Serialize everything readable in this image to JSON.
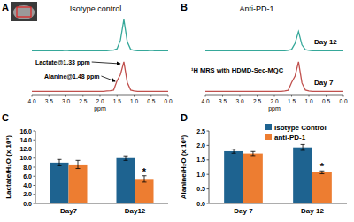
{
  "chart_data": [
    {
      "type": "line",
      "panel_label": "A",
      "title": "Isotype control",
      "x_label": "ppm",
      "x": [
        4.0,
        3.9,
        3.8,
        3.7,
        3.6,
        3.5,
        3.4,
        3.3,
        3.2,
        3.1,
        3.0,
        2.9,
        2.8,
        2.7,
        2.6,
        2.5,
        2.4,
        2.3,
        2.2,
        2.1,
        2.0,
        1.9,
        1.8,
        1.7,
        1.6,
        1.5,
        1.4,
        1.3,
        1.2,
        1.1,
        1.0,
        0.9,
        0.8,
        0.7,
        0.6,
        0.5,
        0.4,
        0.3,
        0.2,
        0.1,
        0.0
      ],
      "xlim": [
        4.0,
        0.0
      ],
      "xticks": [
        {
          "value": 4,
          "label": "4.0"
        },
        3.5,
        {
          "value": 3,
          "label": "3.0"
        },
        2.5,
        {
          "value": 2,
          "label": "2.0"
        },
        1.5,
        {
          "value": 1,
          "label": "1.0"
        },
        0.5,
        {
          "value": 0,
          "label": "0.0"
        }
      ],
      "ylim": [
        0,
        1
      ],
      "tick_labels": "x",
      "series": [
        {
          "color": "#36a89a",
          "values": [
            0.02,
            0.02,
            0.02,
            0.02,
            0.02,
            0.02,
            0.02,
            0.02,
            0.02,
            0.02,
            0.03,
            0.02,
            0.02,
            0.02,
            0.02,
            0.02,
            0.02,
            0.02,
            0.02,
            0.02,
            0.02,
            0.02,
            0.02,
            0.03,
            0.04,
            0.08,
            0.35,
            1.0,
            0.3,
            0.06,
            0.03,
            0.02,
            0.02,
            0.02,
            0.02,
            0.03,
            0.02,
            0.02,
            0.02,
            0.02,
            0.02
          ]
        },
        {
          "color": "#c0504d",
          "values": [
            0.02,
            0.02,
            0.02,
            0.02,
            0.02,
            0.02,
            0.02,
            0.02,
            0.02,
            0.02,
            0.02,
            0.02,
            0.02,
            0.02,
            0.02,
            0.02,
            0.02,
            0.02,
            0.02,
            0.02,
            0.02,
            0.02,
            0.03,
            0.04,
            0.06,
            0.35,
            0.55,
            0.95,
            0.3,
            0.06,
            0.03,
            0.02,
            0.02,
            0.02,
            0.02,
            0.02,
            0.02,
            0.02,
            0.02,
            0.02,
            0.02
          ]
        }
      ],
      "annotations": [
        {
          "text": "Lactate@1.33 ppm",
          "x": 1.33
        },
        {
          "text": "Alanine@1.48 ppm",
          "x": 1.48
        }
      ]
    },
    {
      "type": "line",
      "panel_label": "B",
      "title": "Anti-PD-1",
      "x_label": "ppm",
      "x": [
        4.0,
        3.9,
        3.8,
        3.7,
        3.6,
        3.5,
        3.4,
        3.3,
        3.2,
        3.1,
        3.0,
        2.9,
        2.8,
        2.7,
        2.6,
        2.5,
        2.4,
        2.3,
        2.2,
        2.1,
        2.0,
        1.9,
        1.8,
        1.7,
        1.6,
        1.5,
        1.4,
        1.3,
        1.2,
        1.1,
        1.0,
        0.9,
        0.8,
        0.7,
        0.6,
        0.5,
        0.4,
        0.3,
        0.2,
        0.1,
        0.0
      ],
      "xlim": [
        4.0,
        0.0
      ],
      "xticks": [
        {
          "value": 4,
          "label": "4.0"
        },
        3.5,
        {
          "value": 3,
          "label": "3.0"
        },
        2.5,
        {
          "value": 2,
          "label": "2.0"
        },
        1.5,
        {
          "value": 1,
          "label": "1.0"
        },
        0.5,
        {
          "value": 0,
          "label": "0.0"
        }
      ],
      "ylim": [
        0,
        1
      ],
      "tick_labels": "x",
      "series": [
        {
          "name": "Day 12",
          "color": "#36a89a",
          "values": [
            0.02,
            0.02,
            0.02,
            0.02,
            0.02,
            0.02,
            0.02,
            0.02,
            0.02,
            0.02,
            0.02,
            0.02,
            0.02,
            0.02,
            0.02,
            0.02,
            0.02,
            0.02,
            0.02,
            0.02,
            0.02,
            0.02,
            0.02,
            0.02,
            0.03,
            0.06,
            0.25,
            0.62,
            0.2,
            0.05,
            0.03,
            0.02,
            0.02,
            0.02,
            0.02,
            0.02,
            0.02,
            0.02,
            0.02,
            0.02,
            0.02
          ]
        },
        {
          "name": "Day 7",
          "color": "#c0504d",
          "values": [
            0.02,
            0.02,
            0.02,
            0.02,
            0.02,
            0.02,
            0.02,
            0.02,
            0.02,
            0.02,
            0.02,
            0.02,
            0.02,
            0.02,
            0.02,
            0.02,
            0.02,
            0.02,
            0.02,
            0.02,
            0.02,
            0.02,
            0.02,
            0.03,
            0.05,
            0.3,
            0.5,
            0.95,
            0.28,
            0.06,
            0.03,
            0.02,
            0.02,
            0.02,
            0.02,
            0.02,
            0.02,
            0.02,
            0.02,
            0.02,
            0.02
          ]
        }
      ],
      "annotations": [
        {
          "text": "¹H MRS with HDMD-Sec-MQC"
        }
      ]
    },
    {
      "type": "bar",
      "panel_label": "C",
      "y_label": "Lactate/H₂O (x 10³)",
      "categories": [
        "Day7",
        "Day12"
      ],
      "ylim": [
        0,
        16
      ],
      "yticks": [
        {
          "value": 0,
          "label": "0.0"
        },
        {
          "value": 2,
          "label": "2.0"
        },
        {
          "value": 4,
          "label": "4.0"
        },
        {
          "value": 6,
          "label": "6.0"
        },
        {
          "value": 8,
          "label": "8.0"
        },
        {
          "value": 10,
          "label": "10.0"
        },
        {
          "value": 12,
          "label": "12.0"
        },
        {
          "value": 14,
          "label": "14.0"
        },
        {
          "value": 16,
          "label": "16.0"
        }
      ],
      "series": [
        {
          "color": "#1e6390",
          "values": [
            9.0,
            10.0
          ],
          "errors": [
            0.7,
            0.5
          ]
        },
        {
          "color": "#ed7d31",
          "values": [
            8.6,
            5.4
          ],
          "errors": [
            0.9,
            0.7
          ]
        }
      ],
      "annotations": [
        {
          "text": "*",
          "series": 1,
          "category": 1
        }
      ]
    },
    {
      "type": "bar",
      "panel_label": "D",
      "y_label": "Alanine/H₂O (x 10³)",
      "categories": [
        "Day 7",
        "Day 12"
      ],
      "ylim": [
        0,
        2.5
      ],
      "yticks": [
        {
          "value": 0,
          "label": "0.0"
        },
        0.5,
        {
          "value": 1,
          "label": "1.0"
        },
        1.5,
        {
          "value": 2,
          "label": "2.0"
        },
        2.5
      ],
      "legend": "top-right",
      "series": [
        {
          "name": "Isotype Control",
          "color": "#1e6390",
          "values": [
            1.8,
            1.93
          ],
          "errors": [
            0.07,
            0.1
          ]
        },
        {
          "name": "anti-PD-1",
          "color": "#ed7d31",
          "values": [
            1.72,
            1.07
          ],
          "errors": [
            0.07,
            0.05
          ]
        }
      ],
      "annotations": [
        {
          "text": "*",
          "series": 1,
          "category": 1
        }
      ]
    }
  ]
}
